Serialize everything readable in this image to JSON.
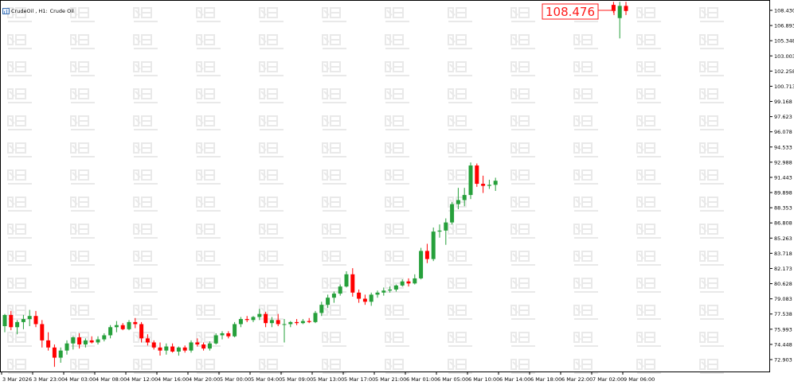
{
  "window": {
    "symbol": "CrudeOil",
    "timeframe": "H1",
    "description": "Crude Oil"
  },
  "current_price": "108.476",
  "colors": {
    "bull": "#26a03b",
    "bear": "#ff0000",
    "price_tag": "#ff1a1a",
    "axis": "#000000",
    "watermark": "#e9e9e9",
    "background": "#ffffff"
  },
  "watermark_icon": "logo-watermark-icon",
  "chart_data": {
    "type": "candlestick",
    "title": "CrudeOil, H1: Crude Oil",
    "ylim": [
      72.14,
      108.6
    ],
    "y_ticks": [
      "108.430",
      "106.893",
      "105.348",
      "103.003",
      "102.258",
      "100.713",
      "99.168",
      "97.623",
      "96.078",
      "94.533",
      "92.988",
      "91.443",
      "89.898",
      "88.353",
      "86.808",
      "85.263",
      "83.718",
      "82.173",
      "80.628",
      "79.083",
      "77.538",
      "75.993",
      "74.448",
      "72.903"
    ],
    "x_tick_labels": [
      "3 Mar 2026",
      "3 Mar 23:00",
      "4 Mar 03:00",
      "4 Mar 08:00",
      "4 Mar 12:00",
      "4 Mar 16:00",
      "4 Mar 20:00",
      "5 Mar 00:00",
      "5 Mar 04:00",
      "5 Mar 09:00",
      "5 Mar 13:00",
      "5 Mar 17:00",
      "5 Mar 21:00",
      "6 Mar 01:00",
      "6 Mar 05:00",
      "6 Mar 10:00",
      "6 Mar 14:00",
      "6 Mar 18:00",
      "6 Mar 22:00",
      "7 Mar 02:00",
      "9 Mar 06:00"
    ],
    "x_tick_bars": [
      0,
      5,
      10,
      15,
      20,
      25,
      30,
      35,
      40,
      45,
      50,
      55,
      60,
      65,
      70,
      75,
      80,
      85,
      90,
      95,
      100
    ],
    "candles": [
      {
        "o": 76.6,
        "h": 77.8,
        "l": 76.0,
        "c": 77.7
      },
      {
        "o": 77.7,
        "h": 78.1,
        "l": 76.2,
        "c": 76.5
      },
      {
        "o": 76.5,
        "h": 77.2,
        "l": 75.8,
        "c": 77.0
      },
      {
        "o": 77.0,
        "h": 77.7,
        "l": 76.3,
        "c": 77.3
      },
      {
        "o": 77.3,
        "h": 78.2,
        "l": 76.6,
        "c": 77.6
      },
      {
        "o": 77.6,
        "h": 78.1,
        "l": 76.5,
        "c": 76.8
      },
      {
        "o": 76.8,
        "h": 77.2,
        "l": 74.5,
        "c": 75.2
      },
      {
        "o": 75.2,
        "h": 76.0,
        "l": 74.2,
        "c": 74.5
      },
      {
        "o": 74.5,
        "h": 74.8,
        "l": 72.6,
        "c": 73.5
      },
      {
        "o": 73.5,
        "h": 74.5,
        "l": 73.0,
        "c": 74.2
      },
      {
        "o": 74.2,
        "h": 75.2,
        "l": 73.8,
        "c": 74.9
      },
      {
        "o": 74.9,
        "h": 75.6,
        "l": 74.3,
        "c": 75.5
      },
      {
        "o": 75.5,
        "h": 75.9,
        "l": 74.4,
        "c": 74.8
      },
      {
        "o": 74.8,
        "h": 75.4,
        "l": 74.5,
        "c": 75.2
      },
      {
        "o": 75.2,
        "h": 75.6,
        "l": 74.9,
        "c": 75.0
      },
      {
        "o": 75.0,
        "h": 75.6,
        "l": 74.8,
        "c": 75.3
      },
      {
        "o": 75.3,
        "h": 75.9,
        "l": 75.1,
        "c": 75.7
      },
      {
        "o": 75.7,
        "h": 76.7,
        "l": 75.4,
        "c": 76.5
      },
      {
        "o": 76.5,
        "h": 77.1,
        "l": 76.0,
        "c": 76.7
      },
      {
        "o": 76.7,
        "h": 76.9,
        "l": 76.2,
        "c": 76.3
      },
      {
        "o": 76.3,
        "h": 77.2,
        "l": 76.2,
        "c": 77.0
      },
      {
        "o": 77.0,
        "h": 77.4,
        "l": 76.4,
        "c": 76.8
      },
      {
        "o": 76.8,
        "h": 77.0,
        "l": 75.0,
        "c": 75.4
      },
      {
        "o": 75.4,
        "h": 75.8,
        "l": 74.7,
        "c": 75.0
      },
      {
        "o": 75.0,
        "h": 75.2,
        "l": 74.3,
        "c": 74.5
      },
      {
        "o": 74.5,
        "h": 75.0,
        "l": 73.7,
        "c": 74.2
      },
      {
        "o": 74.2,
        "h": 74.9,
        "l": 73.8,
        "c": 74.6
      },
      {
        "o": 74.6,
        "h": 74.9,
        "l": 74.0,
        "c": 74.1
      },
      {
        "o": 74.1,
        "h": 74.6,
        "l": 73.7,
        "c": 74.5
      },
      {
        "o": 74.5,
        "h": 74.7,
        "l": 74.0,
        "c": 74.2
      },
      {
        "o": 74.2,
        "h": 75.2,
        "l": 74.0,
        "c": 75.0
      },
      {
        "o": 75.0,
        "h": 75.4,
        "l": 74.6,
        "c": 74.8
      },
      {
        "o": 74.8,
        "h": 75.0,
        "l": 74.2,
        "c": 74.4
      },
      {
        "o": 74.4,
        "h": 75.1,
        "l": 74.2,
        "c": 74.9
      },
      {
        "o": 74.9,
        "h": 75.9,
        "l": 74.8,
        "c": 75.7
      },
      {
        "o": 75.7,
        "h": 76.1,
        "l": 75.3,
        "c": 75.9
      },
      {
        "o": 75.9,
        "h": 76.1,
        "l": 75.4,
        "c": 75.6
      },
      {
        "o": 75.6,
        "h": 77.0,
        "l": 75.5,
        "c": 76.8
      },
      {
        "o": 76.8,
        "h": 77.5,
        "l": 76.5,
        "c": 77.3
      },
      {
        "o": 77.3,
        "h": 77.6,
        "l": 77.0,
        "c": 77.2
      },
      {
        "o": 77.2,
        "h": 77.6,
        "l": 77.0,
        "c": 77.5
      },
      {
        "o": 77.5,
        "h": 78.3,
        "l": 77.2,
        "c": 77.8
      },
      {
        "o": 77.8,
        "h": 78.0,
        "l": 76.5,
        "c": 76.9
      },
      {
        "o": 76.9,
        "h": 77.5,
        "l": 76.5,
        "c": 77.2
      },
      {
        "o": 77.2,
        "h": 77.8,
        "l": 76.6,
        "c": 76.8
      },
      {
        "o": 76.8,
        "h": 77.3,
        "l": 75.0,
        "c": 76.8
      },
      {
        "o": 76.8,
        "h": 77.1,
        "l": 76.5,
        "c": 77.0
      },
      {
        "o": 77.0,
        "h": 77.3,
        "l": 76.7,
        "c": 76.9
      },
      {
        "o": 76.9,
        "h": 77.3,
        "l": 76.8,
        "c": 77.1
      },
      {
        "o": 77.1,
        "h": 77.4,
        "l": 76.9,
        "c": 77.0
      },
      {
        "o": 77.0,
        "h": 78.1,
        "l": 76.9,
        "c": 77.9
      },
      {
        "o": 77.9,
        "h": 79.0,
        "l": 77.6,
        "c": 78.7
      },
      {
        "o": 78.7,
        "h": 79.7,
        "l": 78.4,
        "c": 79.4
      },
      {
        "o": 79.4,
        "h": 80.0,
        "l": 78.9,
        "c": 79.8
      },
      {
        "o": 79.8,
        "h": 80.7,
        "l": 79.6,
        "c": 80.5
      },
      {
        "o": 80.5,
        "h": 82.0,
        "l": 80.4,
        "c": 81.7
      },
      {
        "o": 81.7,
        "h": 82.3,
        "l": 79.5,
        "c": 79.9
      },
      {
        "o": 79.9,
        "h": 80.2,
        "l": 78.9,
        "c": 79.3
      },
      {
        "o": 79.3,
        "h": 79.7,
        "l": 78.7,
        "c": 79.0
      },
      {
        "o": 79.0,
        "h": 79.9,
        "l": 78.6,
        "c": 79.7
      },
      {
        "o": 79.7,
        "h": 80.1,
        "l": 79.4,
        "c": 79.9
      },
      {
        "o": 79.9,
        "h": 80.4,
        "l": 79.6,
        "c": 80.1
      },
      {
        "o": 80.1,
        "h": 80.5,
        "l": 79.9,
        "c": 80.2
      },
      {
        "o": 80.2,
        "h": 80.7,
        "l": 80.0,
        "c": 80.6
      },
      {
        "o": 80.6,
        "h": 81.2,
        "l": 80.5,
        "c": 81.0
      },
      {
        "o": 81.0,
        "h": 81.3,
        "l": 80.5,
        "c": 80.8
      },
      {
        "o": 80.8,
        "h": 81.7,
        "l": 80.7,
        "c": 81.3
      },
      {
        "o": 81.3,
        "h": 84.3,
        "l": 81.2,
        "c": 84.0
      },
      {
        "o": 84.0,
        "h": 84.7,
        "l": 82.8,
        "c": 83.2
      },
      {
        "o": 83.2,
        "h": 86.3,
        "l": 83.0,
        "c": 85.9
      },
      {
        "o": 85.9,
        "h": 86.6,
        "l": 85.3,
        "c": 86.0
      },
      {
        "o": 86.0,
        "h": 87.2,
        "l": 84.6,
        "c": 86.8
      },
      {
        "o": 86.8,
        "h": 88.8,
        "l": 86.6,
        "c": 88.6
      },
      {
        "o": 88.6,
        "h": 90.2,
        "l": 88.1,
        "c": 89.0
      },
      {
        "o": 89.0,
        "h": 90.2,
        "l": 88.4,
        "c": 89.5
      },
      {
        "o": 89.5,
        "h": 92.7,
        "l": 89.1,
        "c": 92.4
      },
      {
        "o": 92.4,
        "h": 92.6,
        "l": 90.3,
        "c": 90.6
      },
      {
        "o": 90.6,
        "h": 91.4,
        "l": 89.7,
        "c": 90.4
      },
      {
        "o": 90.4,
        "h": 91.0,
        "l": 90.1,
        "c": 90.5
      },
      {
        "o": 90.5,
        "h": 91.2,
        "l": 89.9,
        "c": 90.9
      },
      {
        "o": 108.2,
        "h": 108.5,
        "l": 107.4,
        "c": 107.6
      },
      {
        "o": 106.9,
        "h": 108.5,
        "l": 104.9,
        "c": 108.1
      },
      {
        "o": 108.1,
        "h": 108.5,
        "l": 107.2,
        "c": 107.6
      }
    ],
    "candle_bars": [
      0,
      1,
      2,
      3,
      4,
      5,
      6,
      7,
      8,
      9,
      10,
      11,
      12,
      13,
      14,
      15,
      16,
      17,
      18,
      19,
      20,
      21,
      22,
      23,
      24,
      25,
      26,
      27,
      28,
      29,
      30,
      31,
      32,
      33,
      34,
      35,
      36,
      37,
      38,
      39,
      40,
      41,
      42,
      43,
      44,
      45,
      46,
      47,
      48,
      49,
      50,
      51,
      52,
      53,
      54,
      55,
      56,
      57,
      58,
      59,
      60,
      61,
      62,
      63,
      64,
      65,
      66,
      67,
      68,
      69,
      70,
      71,
      72,
      73,
      74,
      75,
      76,
      77,
      78,
      79,
      98,
      99,
      100
    ],
    "grid": false,
    "legend": "none",
    "xlabel": "",
    "ylabel": ""
  }
}
